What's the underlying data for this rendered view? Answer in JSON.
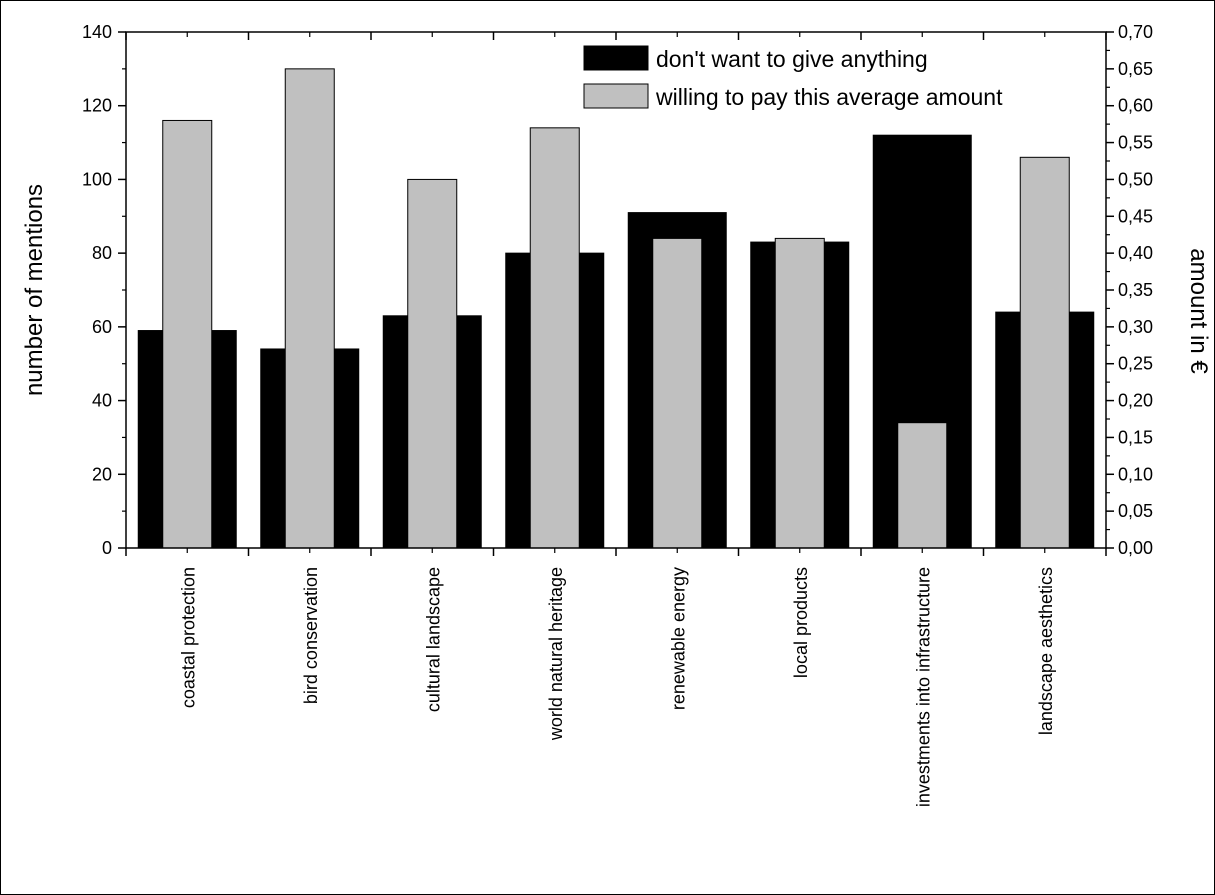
{
  "chart_data": {
    "type": "bar",
    "categories": [
      "coastal protection",
      "bird conservation",
      "cultural landscape",
      "world natural heritage",
      "renewable energy",
      "local products",
      "investments into infrastructure",
      "landscape aesthetics"
    ],
    "series": [
      {
        "name": "don't want to give anything",
        "axis": "left",
        "color": "#000000",
        "values": [
          59,
          54,
          63,
          80,
          91,
          83,
          112,
          64
        ]
      },
      {
        "name": "willing to pay this average amount",
        "axis": "right",
        "color": "#c0c0c0",
        "values": [
          0.58,
          0.65,
          0.5,
          0.57,
          0.42,
          0.42,
          0.17,
          0.53
        ]
      }
    ],
    "ylabel": "number of mentions",
    "y2label": "amount in €",
    "ylim": [
      0,
      140
    ],
    "y2lim": [
      0,
      0.7
    ],
    "yticks": [
      "0",
      "20",
      "40",
      "60",
      "80",
      "100",
      "120",
      "140"
    ],
    "y2ticks": [
      "0,00",
      "0,05",
      "0,10",
      "0,15",
      "0,20",
      "0,25",
      "0,30",
      "0,35",
      "0,40",
      "0,45",
      "0,50",
      "0,55",
      "0,60",
      "0,65",
      "0,70"
    ],
    "legend_position": "top-right",
    "grid": false
  }
}
